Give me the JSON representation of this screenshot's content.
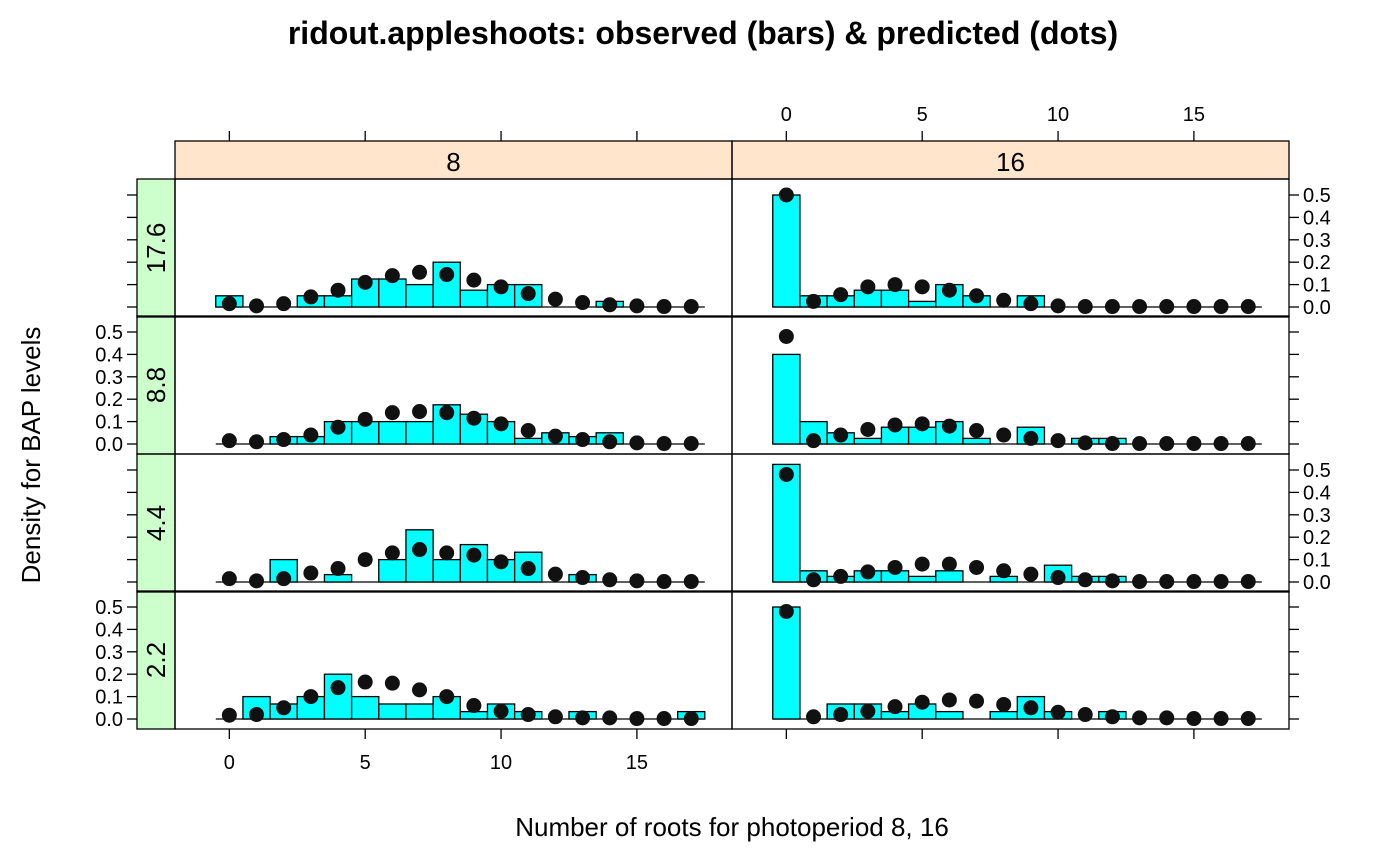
{
  "chart_data": {
    "type": "bar",
    "title": "ridout.appleshoots: observed (bars) & predicted (dots)",
    "xlabel": "Number of roots for photoperiod 8, 16",
    "ylabel": "Density for BAP levels",
    "x_ticks": [
      0,
      5,
      10,
      15
    ],
    "y_ticks": [
      "0.0",
      "0.1",
      "0.2",
      "0.3",
      "0.4",
      "0.5"
    ],
    "xlim": [
      -2,
      18.5
    ],
    "ylim": [
      0,
      0.55
    ],
    "photoperiods": [
      "8",
      "16"
    ],
    "bap_levels": [
      "2.2",
      "4.4",
      "8.8",
      "17.6"
    ],
    "colors": {
      "bar_fill": "#00FFFF",
      "dot": "#111111",
      "strip_top": "#FFE5CC",
      "strip_left": "#CCFFCC"
    },
    "panels": [
      {
        "photoperiod": "8",
        "bap": "2.2",
        "observed": [
          0.0,
          0.1,
          0.067,
          0.1,
          0.2,
          0.1,
          0.067,
          0.067,
          0.1,
          0.033,
          0.067,
          0.033,
          0.0,
          0.033,
          0.0,
          0.0,
          0.0,
          0.033
        ],
        "predicted": [
          0.017,
          0.02,
          0.05,
          0.1,
          0.14,
          0.165,
          0.16,
          0.13,
          0.1,
          0.06,
          0.035,
          0.02,
          0.01,
          0.005,
          0.005,
          0.002,
          0.002,
          0.002
        ]
      },
      {
        "photoperiod": "8",
        "bap": "4.4",
        "observed": [
          0.0,
          0.0,
          0.1,
          0.0,
          0.033,
          0.0,
          0.1,
          0.233,
          0.1,
          0.167,
          0.1,
          0.133,
          0.0,
          0.033,
          0.0,
          0.0,
          0.0,
          0.0
        ],
        "predicted": [
          0.015,
          0.005,
          0.015,
          0.04,
          0.06,
          0.1,
          0.13,
          0.145,
          0.13,
          0.12,
          0.09,
          0.06,
          0.035,
          0.02,
          0.01,
          0.005,
          0.002,
          0.002
        ]
      },
      {
        "photoperiod": "8",
        "bap": "8.8",
        "observed": [
          0.0,
          0.0,
          0.033,
          0.033,
          0.1,
          0.1,
          0.1,
          0.1,
          0.175,
          0.133,
          0.1,
          0.025,
          0.05,
          0.033,
          0.05,
          0.0,
          0.0,
          0.0
        ],
        "predicted": [
          0.015,
          0.01,
          0.02,
          0.04,
          0.075,
          0.11,
          0.14,
          0.145,
          0.14,
          0.115,
          0.09,
          0.06,
          0.035,
          0.02,
          0.01,
          0.005,
          0.002,
          0.002
        ]
      },
      {
        "photoperiod": "8",
        "bap": "17.6",
        "observed": [
          0.05,
          0.0,
          0.0,
          0.05,
          0.05,
          0.125,
          0.125,
          0.1,
          0.2,
          0.075,
          0.1,
          0.1,
          0.0,
          0.0,
          0.025,
          0.0,
          0.0,
          0.0
        ],
        "predicted": [
          0.015,
          0.005,
          0.015,
          0.045,
          0.075,
          0.11,
          0.14,
          0.155,
          0.145,
          0.12,
          0.09,
          0.06,
          0.035,
          0.02,
          0.01,
          0.005,
          0.002,
          0.002
        ]
      },
      {
        "photoperiod": "16",
        "bap": "2.2",
        "observed": [
          0.5,
          0.0,
          0.067,
          0.067,
          0.033,
          0.067,
          0.033,
          0.0,
          0.033,
          0.1,
          0.033,
          0.0,
          0.033,
          0.0,
          0.0,
          0.0,
          0.0,
          0.0
        ],
        "predicted": [
          0.48,
          0.01,
          0.02,
          0.035,
          0.055,
          0.075,
          0.085,
          0.08,
          0.065,
          0.05,
          0.03,
          0.02,
          0.01,
          0.005,
          0.005,
          0.002,
          0.002,
          0.002
        ]
      },
      {
        "photoperiod": "16",
        "bap": "4.4",
        "observed": [
          0.525,
          0.05,
          0.025,
          0.05,
          0.05,
          0.025,
          0.05,
          0.0,
          0.025,
          0.0,
          0.075,
          0.025,
          0.025,
          0.0,
          0.0,
          0.0,
          0.0,
          0.0
        ],
        "predicted": [
          0.48,
          0.01,
          0.025,
          0.045,
          0.065,
          0.08,
          0.08,
          0.065,
          0.05,
          0.035,
          0.02,
          0.01,
          0.005,
          0.002,
          0.002,
          0.002,
          0.002,
          0.002
        ]
      },
      {
        "photoperiod": "16",
        "bap": "8.8",
        "observed": [
          0.4,
          0.1,
          0.05,
          0.025,
          0.075,
          0.075,
          0.1,
          0.025,
          0.0,
          0.075,
          0.0,
          0.025,
          0.025,
          0.0,
          0.0,
          0.0,
          0.0,
          0.0
        ],
        "predicted": [
          0.48,
          0.015,
          0.04,
          0.065,
          0.085,
          0.09,
          0.08,
          0.06,
          0.04,
          0.025,
          0.015,
          0.005,
          0.002,
          0.002,
          0.002,
          0.002,
          0.002,
          0.002
        ]
      },
      {
        "photoperiod": "16",
        "bap": "17.6",
        "observed": [
          0.5,
          0.05,
          0.05,
          0.075,
          0.075,
          0.025,
          0.1,
          0.05,
          0.0,
          0.05,
          0.0,
          0.0,
          0.0,
          0.0,
          0.0,
          0.0,
          0.0,
          0.0
        ],
        "predicted": [
          0.5,
          0.025,
          0.055,
          0.09,
          0.1,
          0.09,
          0.075,
          0.05,
          0.03,
          0.015,
          0.005,
          0.002,
          0.002,
          0.002,
          0.002,
          0.002,
          0.002,
          0.002
        ]
      }
    ]
  }
}
